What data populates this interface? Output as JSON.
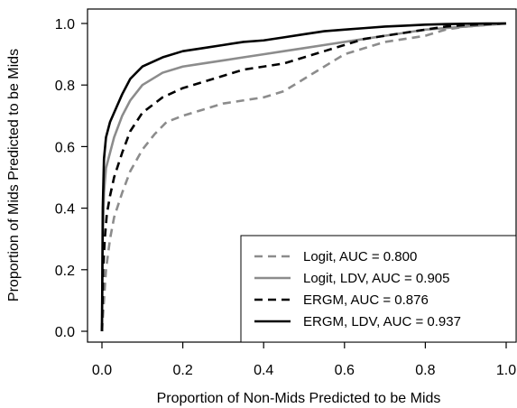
{
  "chart_data": {
    "type": "line",
    "xlabel": "Proportion of Non-Mids Predicted to be Mids",
    "ylabel": "Proportion of Mids Predicted to be Mids",
    "xlim": [
      0,
      1
    ],
    "ylim": [
      0,
      1
    ],
    "x_ticks": [
      0,
      0.2,
      0.4,
      0.6,
      0.8,
      1
    ],
    "x_tick_labels": [
      "0.0",
      "0.2",
      "0.4",
      "0.6",
      "0.8",
      "1.0"
    ],
    "y_ticks": [
      0,
      0.2,
      0.4,
      0.6,
      0.8,
      1
    ],
    "y_tick_labels": [
      "0.0",
      "0.2",
      "0.4",
      "0.6",
      "0.8",
      "1.0"
    ],
    "grid": false,
    "legend_position": "bottom-right",
    "series": [
      {
        "name": "Logit, AUC = 0.800",
        "color": "#8c8c8c",
        "dash": "dashed",
        "x": [
          0,
          0.005,
          0.01,
          0.02,
          0.03,
          0.05,
          0.07,
          0.1,
          0.13,
          0.16,
          0.2,
          0.25,
          0.3,
          0.35,
          0.4,
          0.45,
          0.5,
          0.55,
          0.6,
          0.65,
          0.7,
          0.75,
          0.8,
          0.85,
          0.9,
          0.95,
          1.0
        ],
        "y": [
          0,
          0.1,
          0.2,
          0.3,
          0.37,
          0.45,
          0.52,
          0.59,
          0.64,
          0.68,
          0.7,
          0.72,
          0.74,
          0.75,
          0.76,
          0.78,
          0.82,
          0.86,
          0.9,
          0.92,
          0.94,
          0.95,
          0.96,
          0.98,
          0.99,
          0.995,
          1.0
        ]
      },
      {
        "name": "Logit, LDV, AUC = 0.905",
        "color": "#8c8c8c",
        "dash": "solid",
        "x": [
          0,
          0.002,
          0.005,
          0.01,
          0.02,
          0.03,
          0.05,
          0.07,
          0.1,
          0.15,
          0.2,
          0.25,
          0.3,
          0.35,
          0.4,
          0.45,
          0.5,
          0.55,
          0.6,
          0.65,
          0.7,
          0.75,
          0.8,
          0.85,
          0.9,
          0.95,
          1.0
        ],
        "y": [
          0,
          0.3,
          0.45,
          0.53,
          0.58,
          0.63,
          0.7,
          0.75,
          0.8,
          0.84,
          0.86,
          0.87,
          0.88,
          0.89,
          0.9,
          0.91,
          0.92,
          0.93,
          0.94,
          0.95,
          0.96,
          0.97,
          0.98,
          0.985,
          0.99,
          0.995,
          1.0
        ]
      },
      {
        "name": "ERGM, AUC = 0.876",
        "color": "#000000",
        "dash": "dashed",
        "x": [
          0,
          0.003,
          0.007,
          0.012,
          0.02,
          0.03,
          0.05,
          0.07,
          0.1,
          0.15,
          0.2,
          0.25,
          0.3,
          0.35,
          0.4,
          0.45,
          0.5,
          0.55,
          0.6,
          0.65,
          0.7,
          0.75,
          0.8,
          0.85,
          0.9,
          0.95,
          1.0
        ],
        "y": [
          0,
          0.2,
          0.3,
          0.38,
          0.44,
          0.5,
          0.58,
          0.65,
          0.71,
          0.76,
          0.79,
          0.81,
          0.83,
          0.85,
          0.86,
          0.87,
          0.89,
          0.91,
          0.93,
          0.95,
          0.96,
          0.97,
          0.98,
          0.99,
          0.995,
          0.998,
          1.0
        ]
      },
      {
        "name": "ERGM, LDV, AUC = 0.937",
        "color": "#000000",
        "dash": "solid",
        "x": [
          0,
          0.002,
          0.005,
          0.01,
          0.02,
          0.03,
          0.05,
          0.07,
          0.1,
          0.15,
          0.2,
          0.25,
          0.3,
          0.35,
          0.4,
          0.45,
          0.5,
          0.55,
          0.6,
          0.65,
          0.7,
          0.75,
          0.8,
          0.85,
          0.9,
          0.95,
          1.0
        ],
        "y": [
          0,
          0.4,
          0.56,
          0.63,
          0.68,
          0.71,
          0.77,
          0.82,
          0.86,
          0.89,
          0.91,
          0.92,
          0.93,
          0.94,
          0.945,
          0.955,
          0.965,
          0.975,
          0.98,
          0.985,
          0.99,
          0.993,
          0.996,
          0.998,
          0.999,
          1.0,
          1.0
        ]
      }
    ]
  }
}
